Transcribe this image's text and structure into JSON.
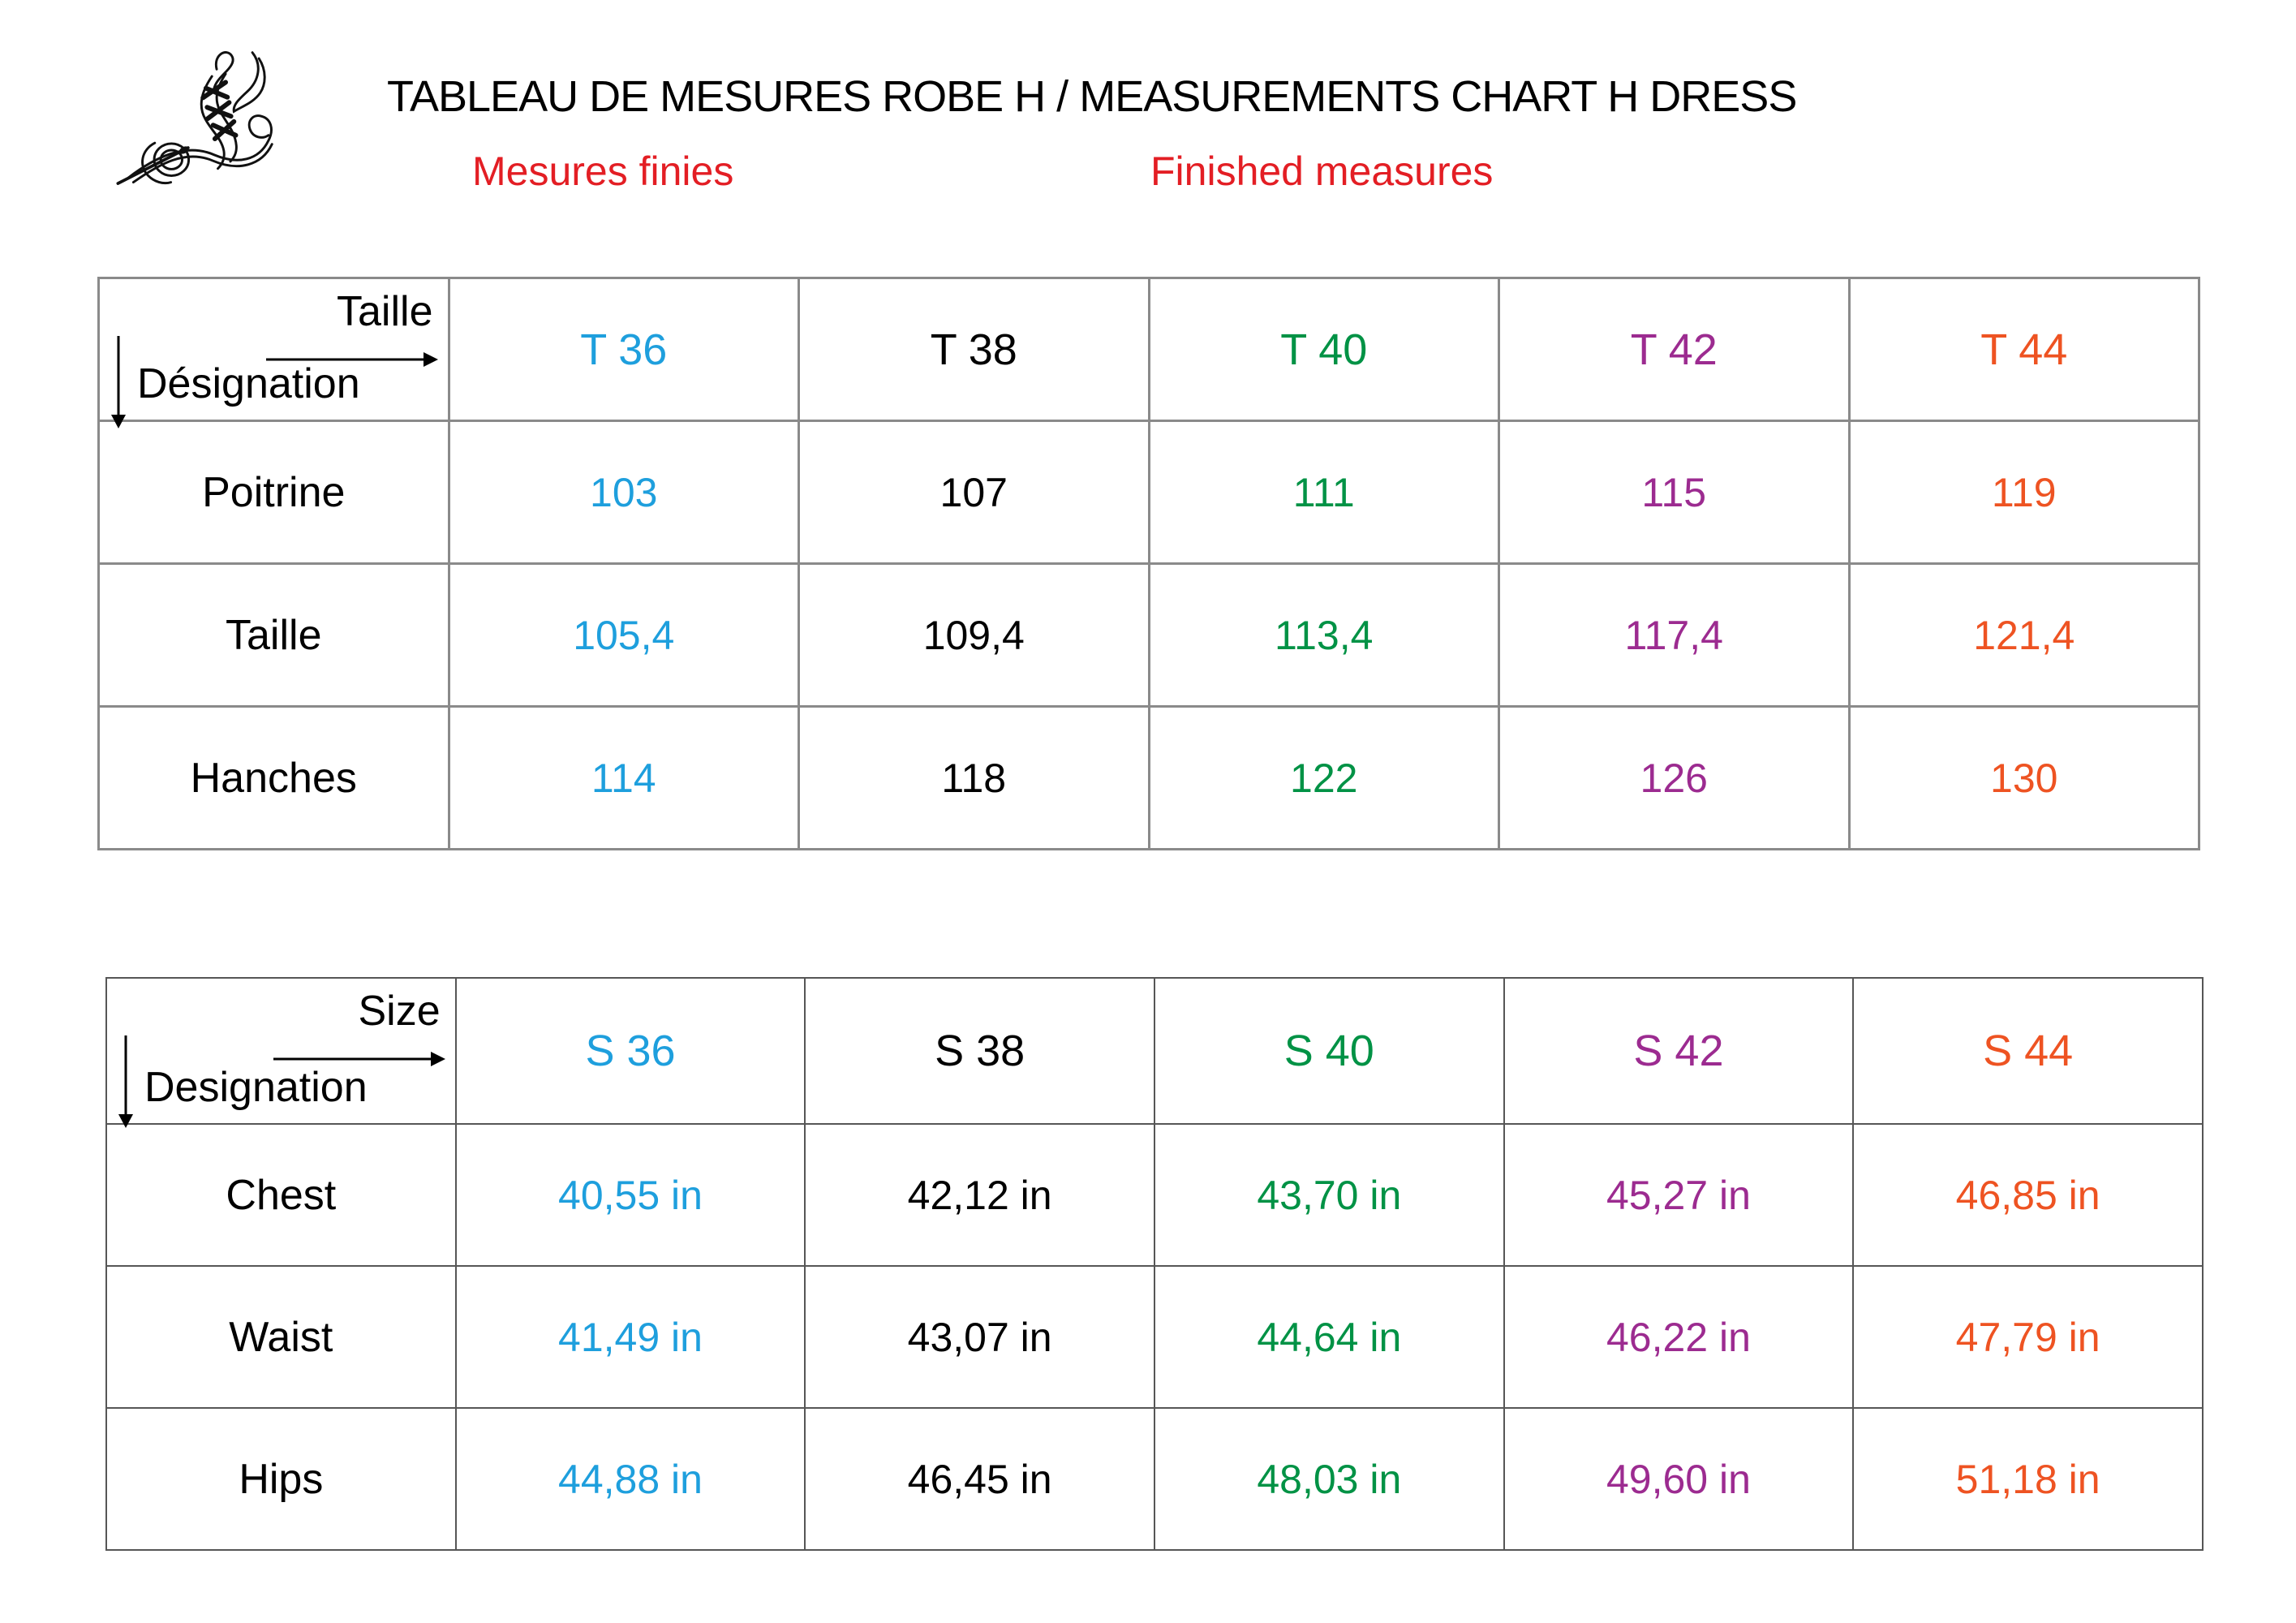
{
  "page": {
    "title": "TABLEAU DE MESURES ROBE H / MEASUREMENTS CHART H DRESS",
    "subtitle_fr": "Mesures finies",
    "subtitle_en": "Finished measures"
  },
  "colors": {
    "subtitle_red": "#e31e24",
    "size36_blue": "#1e9fdd",
    "size38_black": "#000000",
    "size40_green": "#009245",
    "size42_purple": "#9c2b90",
    "size44_orange": "#ee5322",
    "grid_gray": "#8a8a8a"
  },
  "table_fr": {
    "corner": {
      "top_label": "Taille",
      "bottom_label": "Désignation"
    },
    "columns": [
      {
        "label": "T 36",
        "color": "#1e9fdd"
      },
      {
        "label": "T 38",
        "color": "#000000"
      },
      {
        "label": "T 40",
        "color": "#009245"
      },
      {
        "label": "T 42",
        "color": "#9c2b90"
      },
      {
        "label": "T 44",
        "color": "#ee5322"
      }
    ],
    "rows": [
      {
        "label": "Poitrine",
        "values": [
          "103",
          "107",
          "111",
          "115",
          "119"
        ]
      },
      {
        "label": "Taille",
        "values": [
          "105,4",
          "109,4",
          "113,4",
          "117,4",
          "121,4"
        ]
      },
      {
        "label": "Hanches",
        "values": [
          "114",
          "118",
          "122",
          "126",
          "130"
        ]
      }
    ]
  },
  "table_en": {
    "corner": {
      "top_label": "Size",
      "bottom_label": "Designation"
    },
    "columns": [
      {
        "label": "S 36",
        "color": "#1e9fdd"
      },
      {
        "label": "S 38",
        "color": "#000000"
      },
      {
        "label": "S 40",
        "color": "#009245"
      },
      {
        "label": "S 42",
        "color": "#9c2b90"
      },
      {
        "label": "S 44",
        "color": "#ee5322"
      }
    ],
    "rows": [
      {
        "label": "Chest",
        "values": [
          "40,55 in",
          "42,12 in",
          "43,70 in",
          "45,27 in",
          "46,85 in"
        ]
      },
      {
        "label": "Waist",
        "values": [
          "41,49 in",
          "43,07 in",
          "44,64 in",
          "46,22 in",
          "47,79 in"
        ]
      },
      {
        "label": "Hips",
        "values": [
          "44,88 in",
          "46,45 in",
          "48,03 in",
          "49,60 in",
          "51,18 in"
        ]
      }
    ]
  }
}
